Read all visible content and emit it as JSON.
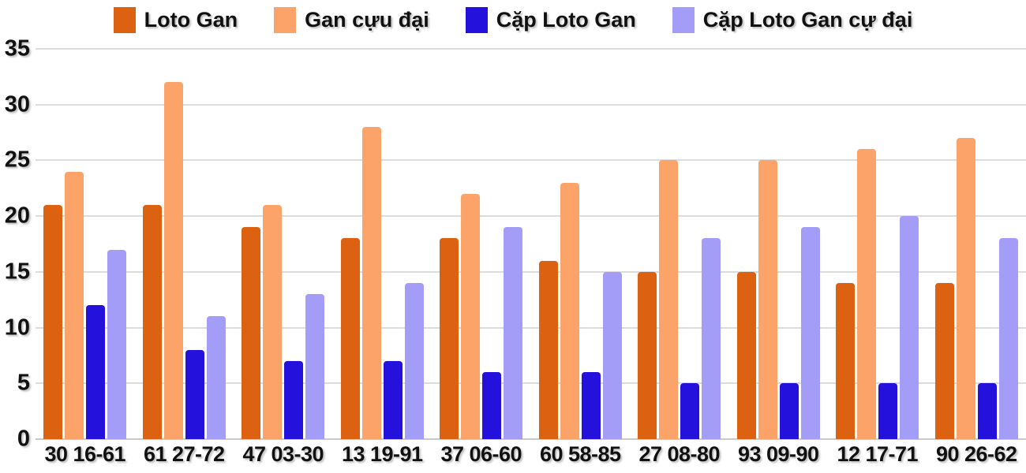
{
  "chart_data": {
    "type": "bar",
    "title": "",
    "xlabel": "",
    "ylabel": "",
    "categories": [
      "30 16-61",
      "61 27-72",
      "47 03-30",
      "13 19-91",
      "37 06-60",
      "60 58-85",
      "27 08-80",
      "93 09-90",
      "12 17-71",
      "90 26-62"
    ],
    "series": [
      {
        "name": "Loto Gan",
        "color": "#dc6212",
        "values": [
          21,
          21,
          19,
          18,
          18,
          16,
          15,
          15,
          14,
          14
        ]
      },
      {
        "name": "Gan cựu đại",
        "color": "#fba368",
        "values": [
          24,
          32,
          21,
          28,
          22,
          23,
          25,
          25,
          26,
          27
        ]
      },
      {
        "name": "Cặp Loto Gan",
        "color": "#2412dc",
        "values": [
          12,
          8,
          7,
          7,
          6,
          6,
          5,
          5,
          5,
          5
        ]
      },
      {
        "name": "Cặp Loto Gan cự đại",
        "color": "#a49df8",
        "values": [
          17,
          11,
          13,
          14,
          19,
          15,
          18,
          19,
          20,
          18
        ]
      }
    ],
    "ylim": [
      0,
      35
    ],
    "yticks": [
      35,
      30,
      25,
      20,
      15,
      10,
      5,
      0
    ],
    "grid": true,
    "legend_position": "top",
    "colors": {
      "background": "#ffffff",
      "gridline": "#dcdcdc",
      "baseline": "#c9c9c9",
      "axis_text": "#111111"
    }
  }
}
